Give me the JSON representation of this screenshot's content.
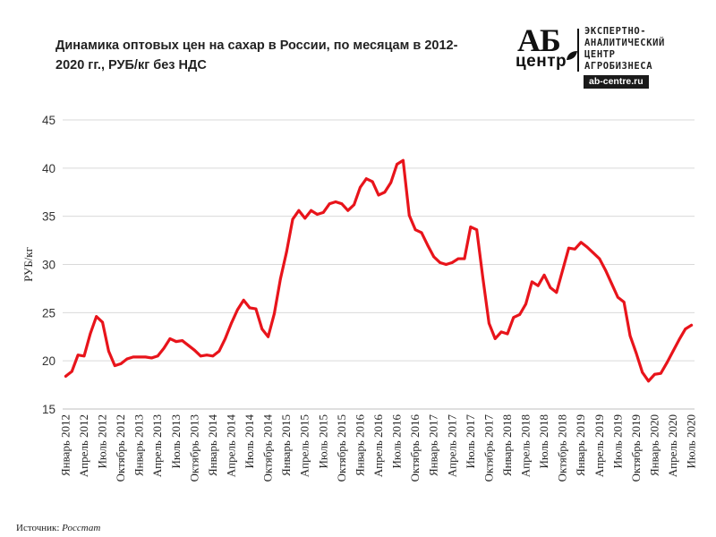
{
  "header": {
    "title": "Динамика оптовых цен на сахар в России, по месяцам в 2012-2020 гг., РУБ/кг без НДС"
  },
  "logo": {
    "mark_top": "АБ",
    "mark_bottom": "центр",
    "text": "ЭКСПЕРТНО-\nАНАЛИТИЧЕСКИЙ\nЦЕНТР\nАГРОБИЗНЕСА",
    "url": "ab-centre.ru"
  },
  "footer": {
    "source_label": "Источник:",
    "source_name": "Росстат"
  },
  "chart_data": {
    "type": "line",
    "title": "Динамика оптовых цен на сахар в России, по месяцам в 2012-2020 гг., РУБ/кг без НДС",
    "xlabel": "",
    "ylabel": "РУБ/кг",
    "ylim": [
      15,
      45
    ],
    "yticks": [
      15,
      20,
      25,
      30,
      35,
      40,
      45
    ],
    "grid": "horizontal",
    "legend": "none",
    "color": "#e8141b",
    "x": [
      "2012-01",
      "2012-02",
      "2012-03",
      "2012-04",
      "2012-05",
      "2012-06",
      "2012-07",
      "2012-08",
      "2012-09",
      "2012-10",
      "2012-11",
      "2012-12",
      "2013-01",
      "2013-02",
      "2013-03",
      "2013-04",
      "2013-05",
      "2013-06",
      "2013-07",
      "2013-08",
      "2013-09",
      "2013-10",
      "2013-11",
      "2013-12",
      "2014-01",
      "2014-02",
      "2014-03",
      "2014-04",
      "2014-05",
      "2014-06",
      "2014-07",
      "2014-08",
      "2014-09",
      "2014-10",
      "2014-11",
      "2014-12",
      "2015-01",
      "2015-02",
      "2015-03",
      "2015-04",
      "2015-05",
      "2015-06",
      "2015-07",
      "2015-08",
      "2015-09",
      "2015-10",
      "2015-11",
      "2015-12",
      "2016-01",
      "2016-02",
      "2016-03",
      "2016-04",
      "2016-05",
      "2016-06",
      "2016-07",
      "2016-08",
      "2016-09",
      "2016-10",
      "2016-11",
      "2016-12",
      "2017-01",
      "2017-02",
      "2017-03",
      "2017-04",
      "2017-05",
      "2017-06",
      "2017-07",
      "2017-08",
      "2017-09",
      "2017-10",
      "2017-11",
      "2017-12",
      "2018-01",
      "2018-02",
      "2018-03",
      "2018-04",
      "2018-05",
      "2018-06",
      "2018-07",
      "2018-08",
      "2018-09",
      "2018-10",
      "2018-11",
      "2018-12",
      "2019-01",
      "2019-02",
      "2019-03",
      "2019-04",
      "2019-05",
      "2019-06",
      "2019-07",
      "2019-08",
      "2019-09",
      "2019-10",
      "2019-11",
      "2019-12",
      "2020-01",
      "2020-02",
      "2020-03",
      "2020-04",
      "2020-05",
      "2020-06",
      "2020-07"
    ],
    "tick_labels": [
      "Январь 2012",
      "Апрель 2012",
      "Июль 2012",
      "Октябрь 2012",
      "Январь 2013",
      "Апрель 2013",
      "Июль 2013",
      "Октябрь 2013",
      "Январь 2014",
      "Апрель 2014",
      "Июль 2014",
      "Октябрь 2014",
      "Январь 2015",
      "Апрель 2015",
      "Июль 2015",
      "Октябрь 2015",
      "Январь 2016",
      "Апрель 2016",
      "Июль 2016",
      "Октябрь 2016",
      "Январь 2017",
      "Апрель 2017",
      "Июль 2017",
      "Октябрь 2017",
      "Январь 2018",
      "Апрель 2018",
      "Июль 2018",
      "Октябрь 2018",
      "Январь 2019",
      "Апрель 2019",
      "Июль 2019",
      "Октябрь 2019",
      "Январь 2020",
      "Апрель 2020",
      "Июль 2020"
    ],
    "values": [
      18.4,
      18.9,
      20.6,
      20.5,
      22.8,
      24.6,
      24.0,
      21.0,
      19.5,
      19.7,
      20.2,
      20.4,
      20.4,
      20.4,
      20.3,
      20.5,
      21.3,
      22.3,
      22.0,
      22.1,
      21.6,
      21.1,
      20.5,
      20.6,
      20.5,
      21.0,
      22.3,
      23.9,
      25.3,
      26.3,
      25.5,
      25.4,
      23.3,
      22.5,
      24.9,
      28.5,
      31.3,
      34.7,
      35.6,
      34.8,
      35.6,
      35.2,
      35.4,
      36.3,
      36.5,
      36.3,
      35.6,
      36.2,
      38.0,
      38.9,
      38.6,
      37.2,
      37.5,
      38.5,
      40.4,
      40.8,
      35.1,
      33.6,
      33.3,
      32.0,
      30.8,
      30.2,
      30.0,
      30.2,
      30.6,
      30.6,
      33.9,
      33.6,
      28.6,
      23.9,
      22.3,
      23.0,
      22.8,
      24.5,
      24.8,
      25.9,
      28.2,
      27.8,
      28.9,
      27.6,
      27.1,
      29.4,
      31.7,
      31.6,
      32.3,
      31.8,
      31.2,
      30.6,
      29.4,
      28.0,
      26.6,
      26.1,
      22.6,
      20.8,
      18.8,
      17.9,
      18.6,
      18.7,
      19.8,
      21.0,
      22.2,
      23.3,
      23.7
    ]
  }
}
